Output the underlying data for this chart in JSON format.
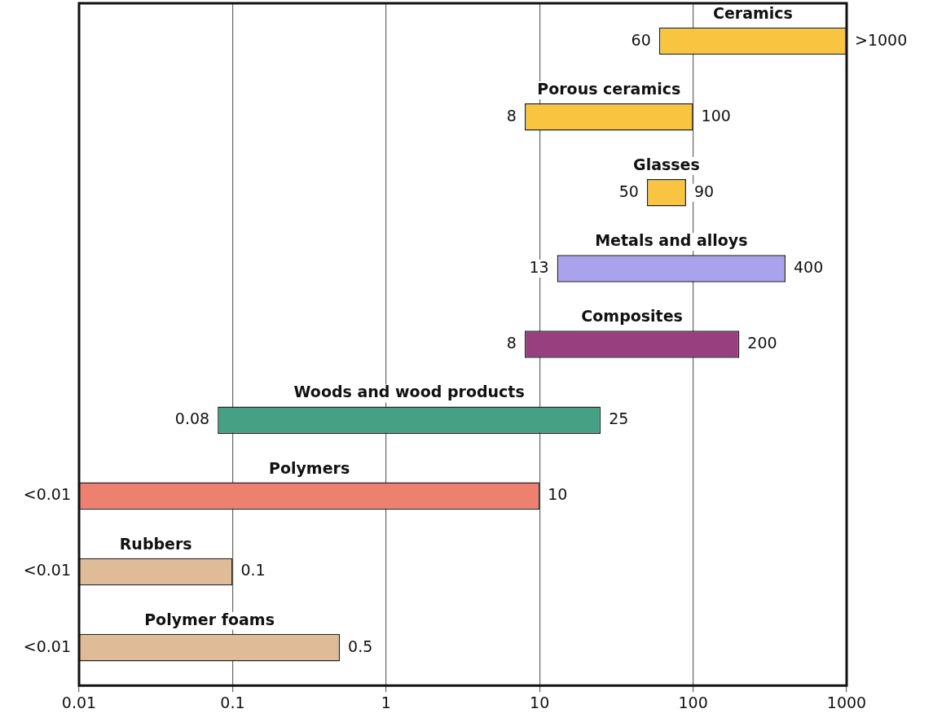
{
  "chart_data": {
    "type": "bar",
    "orientation": "horizontal",
    "log": "x",
    "grid": "x",
    "categories": [
      "Ceramics",
      "Porous ceramics",
      "Glasses",
      "Metals and alloys",
      "Composites",
      "Woods and wood products",
      "Polymers",
      "Rubbers",
      "Polymer foams"
    ],
    "base": [
      60,
      8,
      50,
      13,
      8,
      0.08,
      0.01,
      0.01,
      0.01
    ],
    "values": [
      940,
      92,
      40,
      387,
      192,
      24.92,
      9.99,
      0.09,
      0.49
    ],
    "colors": [
      "#f9c440",
      "#f9c440",
      "#f9c440",
      "#aaa2ec",
      "#98407f",
      "#46a184",
      "#ee8070",
      "#e0bb98",
      "#e0bb98"
    ],
    "xlim": [
      0.01,
      1000
    ],
    "xticks": [
      0.01,
      0.1,
      1,
      10,
      100,
      1000
    ],
    "annotations": [
      {
        "text": "60",
        "x": 60,
        "y": "Ceramics"
      },
      {
        "text": ">1000",
        "x": 1000,
        "y": "Ceramics"
      },
      {
        "text": "8",
        "x": 8,
        "y": "Porous ceramics"
      },
      {
        "text": "100",
        "x": 100,
        "y": "Porous ceramics"
      },
      {
        "text": "50",
        "x": 50,
        "y": "Glasses"
      },
      {
        "text": "90",
        "x": 90,
        "y": "Glasses"
      },
      {
        "text": "13",
        "x": 13,
        "y": "Metals and alloys"
      },
      {
        "text": "400",
        "x": 400,
        "y": "Metals and alloys"
      },
      {
        "text": "8",
        "x": 8,
        "y": "Composites"
      },
      {
        "text": "200",
        "x": 200,
        "y": "Composites"
      },
      {
        "text": "0.08",
        "x": 0.08,
        "y": "Woods and wood products"
      },
      {
        "text": "25",
        "x": 25,
        "y": "Woods and wood products"
      },
      {
        "text": "<0.01",
        "x": 0.01,
        "y": "Polymers"
      },
      {
        "text": "10",
        "x": 10,
        "y": "Polymers"
      },
      {
        "text": "<0.01",
        "x": 0.01,
        "y": "Rubbers"
      },
      {
        "text": "0.1",
        "x": 0.1,
        "y": "Rubbers"
      },
      {
        "text": "<0.01",
        "x": 0.01,
        "y": "Polymer foams"
      },
      {
        "text": "0.5",
        "x": 0.5,
        "y": "Polymer foams"
      }
    ]
  }
}
